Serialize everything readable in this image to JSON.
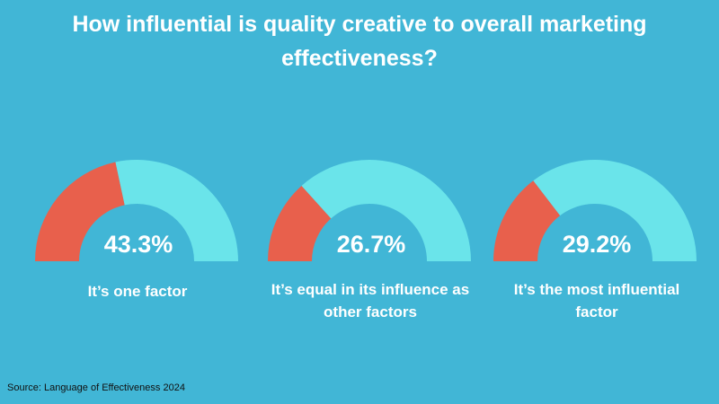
{
  "title": "How influential is quality creative to overall marketing effectiveness?",
  "source": "Source: Language of Effectiveness 2024",
  "colors": {
    "background": "#41b6d6",
    "filled": "#e8604c",
    "remaining": "#6ae4ea"
  },
  "chart_data": {
    "type": "gauge",
    "title": "How influential is quality creative to overall marketing effectiveness?",
    "max": 100,
    "items": [
      {
        "label": "It’s one factor",
        "value": 43.3,
        "value_label": "43.3%"
      },
      {
        "label": "It’s equal in its influence as other factors",
        "value": 26.7,
        "value_label": "26.7%"
      },
      {
        "label": "It’s the most influential factor",
        "value": 29.2,
        "value_label": "29.2%"
      }
    ]
  }
}
